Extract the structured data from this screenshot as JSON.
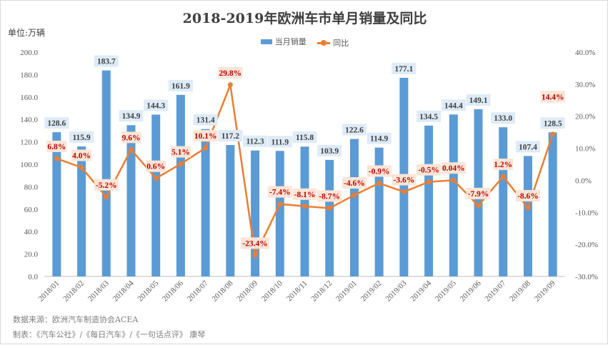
{
  "chart_data": {
    "type": "bar+line",
    "title": "2018-2019年欧洲车市单月销量及同比",
    "unit": "单位:万辆",
    "legend": [
      "当月销量",
      "同比"
    ],
    "legend_position": "top",
    "categories": [
      "2018/01",
      "2018/02",
      "2018/03",
      "2018/04",
      "2018/05",
      "2018/06",
      "2018/07",
      "2018/08",
      "2018/09",
      "2018/10",
      "2018/11",
      "2018/12",
      "2019/01",
      "2019/02",
      "2019/03",
      "2019/04",
      "2019/05",
      "2019/06",
      "2019/07",
      "2019/08",
      "2019/09"
    ],
    "series": [
      {
        "name": "当月销量",
        "type": "bar",
        "axis": "left",
        "values": [
          128.6,
          115.9,
          183.7,
          134.9,
          144.3,
          161.9,
          131.4,
          117.2,
          112.3,
          111.9,
          115.8,
          103.9,
          122.6,
          114.9,
          177.1,
          134.5,
          144.4,
          149.1,
          133.0,
          107.4,
          128.5
        ],
        "labels": [
          "128.6",
          "115.9",
          "183.7",
          "134.9",
          "144.3",
          "161.9",
          "131.4",
          "117.2",
          "112.3",
          "111.9",
          "115.8",
          "103.9",
          "122.6",
          "114.9",
          "177.1",
          "134.5",
          "144.4",
          "149.1",
          "133.0",
          "107.4",
          "128.5"
        ]
      },
      {
        "name": "同比",
        "type": "line",
        "axis": "right",
        "values": [
          6.8,
          4.0,
          -5.2,
          9.6,
          0.6,
          5.1,
          10.1,
          29.8,
          -23.4,
          -7.4,
          -8.1,
          -8.7,
          -4.6,
          -0.9,
          -3.6,
          -0.5,
          0.04,
          -7.9,
          1.2,
          -8.6,
          14.4
        ],
        "labels": [
          "6.8%",
          "4.0%",
          "-5.2%",
          "9.6%",
          "0.6%",
          "5.1%",
          "10.1%",
          "29.8%",
          "-23.4%",
          "-7.4%",
          "-8.1%",
          "-8.7%",
          "-4.6%",
          "-0.9%",
          "-3.6%",
          "-0.5%",
          "0.04%",
          "-7.9%",
          "1.2%",
          "-8.6%",
          "14.4%"
        ]
      }
    ],
    "ylim_left": [
      0,
      200
    ],
    "ylim_right": [
      -30,
      40
    ],
    "left_ticks": [
      "0.0",
      "20.0",
      "40.0",
      "60.0",
      "80.0",
      "100.0",
      "120.0",
      "140.0",
      "160.0",
      "180.0",
      "200.0"
    ],
    "right_ticks": [
      "-30.0%",
      "-20.0%",
      "-10.0%",
      "0.0%",
      "10.0%",
      "20.0%",
      "30.0%",
      "40.0%"
    ],
    "colors": {
      "bar": "#5B9BD5",
      "line": "#ED7D31",
      "bar_label_bg": "#DEEBF7",
      "line_label_bg": "#FBE5D6",
      "line_label_text": "#C00000"
    }
  },
  "footer": {
    "source": "数据来源：欧洲汽车制造协会ACEA",
    "author": "制表：《汽车公社》/《每日汽车》/《一句话点评》 康琴"
  }
}
